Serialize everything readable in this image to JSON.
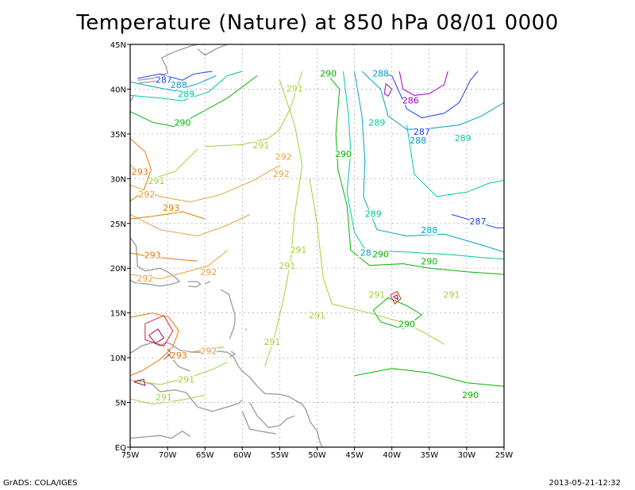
{
  "title": "Temperature (Nature) at 850 hPa 08/01 0000",
  "footer_left": "GrADS: COLA/IGES",
  "footer_right": "2013-05-21-12:32",
  "map": {
    "lon_range": [
      -75,
      -25
    ],
    "lat_range": [
      0,
      45
    ],
    "lon_labels": [
      "75W",
      "70W",
      "65W",
      "60W",
      "55W",
      "50W",
      "45W",
      "40W",
      "35W",
      "30W",
      "25W"
    ],
    "lat_labels": [
      "EQ",
      "5N",
      "10N",
      "15N",
      "20N",
      "25N",
      "30N",
      "35N",
      "40N",
      "45N"
    ],
    "grid": true,
    "coastline_color": "#a0a0a0"
  },
  "contour_colors": {
    "286": "#a000c8",
    "287": "#1e3cff",
    "288": "#00a0c8",
    "289": "#00c8a0",
    "290": "#00b400",
    "291": "#a0d23c",
    "292": "#e6a03c",
    "293": "#e67800",
    "294": "#d22828",
    "295": "#a0004b"
  },
  "contour_labels": [
    {
      "text": "287",
      "color": "287",
      "lon": -70.5,
      "lat": 40.8
    },
    {
      "text": "288",
      "color": "288",
      "lon": -68.5,
      "lat": 40.2
    },
    {
      "text": "289",
      "color": "289",
      "lon": -67.5,
      "lat": 39.2
    },
    {
      "text": "290",
      "color": "290",
      "lon": -68.0,
      "lat": 36.0
    },
    {
      "text": "291",
      "color": "291",
      "lon": -57.5,
      "lat": 33.5
    },
    {
      "text": "292",
      "color": "292",
      "lon": -54.5,
      "lat": 32.2
    },
    {
      "text": "292",
      "color": "292",
      "lon": -54.8,
      "lat": 30.3
    },
    {
      "text": "293",
      "color": "293",
      "lon": -73.7,
      "lat": 30.5
    },
    {
      "text": "291",
      "color": "291",
      "lon": -71.5,
      "lat": 29.5
    },
    {
      "text": "292",
      "color": "292",
      "lon": -72.8,
      "lat": 28.0
    },
    {
      "text": "293",
      "color": "293",
      "lon": -69.5,
      "lat": 26.5
    },
    {
      "text": "291",
      "color": "291",
      "lon": -53.0,
      "lat": 39.8
    },
    {
      "text": "290",
      "color": "290",
      "lon": -48.5,
      "lat": 41.5
    },
    {
      "text": "288",
      "color": "288",
      "lon": -41.5,
      "lat": 41.5
    },
    {
      "text": "286",
      "color": "286",
      "lon": -37.5,
      "lat": 38.5
    },
    {
      "text": "289",
      "color": "289",
      "lon": -42.0,
      "lat": 36.0
    },
    {
      "text": "287",
      "color": "287",
      "lon": -36.0,
      "lat": 35.0
    },
    {
      "text": "288",
      "color": "288",
      "lon": -36.5,
      "lat": 34.0
    },
    {
      "text": "289",
      "color": "289",
      "lon": -30.5,
      "lat": 34.3
    },
    {
      "text": "290",
      "color": "290",
      "lon": -46.5,
      "lat": 32.5
    },
    {
      "text": "289",
      "color": "289",
      "lon": -42.5,
      "lat": 25.8
    },
    {
      "text": "287",
      "color": "287",
      "lon": -28.5,
      "lat": 25.0
    },
    {
      "text": "288",
      "color": "288",
      "lon": -35.0,
      "lat": 24.0
    },
    {
      "text": "293",
      "color": "293",
      "lon": -72.0,
      "lat": 21.2
    },
    {
      "text": "291",
      "color": "291",
      "lon": -52.5,
      "lat": 21.8
    },
    {
      "text": "291",
      "color": "291",
      "lon": -54.0,
      "lat": 20.0
    },
    {
      "text": "28",
      "color": "288",
      "lon": -43.5,
      "lat": 21.5
    },
    {
      "text": "290",
      "color": "290",
      "lon": -41.5,
      "lat": 21.3
    },
    {
      "text": "290",
      "color": "290",
      "lon": -35.0,
      "lat": 20.5
    },
    {
      "text": "292",
      "color": "292",
      "lon": -73.0,
      "lat": 18.6
    },
    {
      "text": "292",
      "color": "292",
      "lon": -64.5,
      "lat": 19.3
    },
    {
      "text": "291",
      "color": "291",
      "lon": -42.0,
      "lat": 16.8
    },
    {
      "text": "291",
      "color": "291",
      "lon": -32.0,
      "lat": 16.8
    },
    {
      "text": "291",
      "color": "291",
      "lon": -50.0,
      "lat": 14.5
    },
    {
      "text": "290",
      "color": "290",
      "lon": -38.0,
      "lat": 13.5
    },
    {
      "text": "291",
      "color": "291",
      "lon": -56.0,
      "lat": 11.5
    },
    {
      "text": "292",
      "color": "292",
      "lon": -64.5,
      "lat": 10.5
    },
    {
      "text": "293",
      "color": "293",
      "lon": -68.5,
      "lat": 10.0
    },
    {
      "text": "291",
      "color": "291",
      "lon": -67.5,
      "lat": 7.3
    },
    {
      "text": "290",
      "color": "290",
      "lon": -29.5,
      "lat": 5.6
    },
    {
      "text": "291",
      "color": "291",
      "lon": -70.5,
      "lat": 5.3
    }
  ]
}
